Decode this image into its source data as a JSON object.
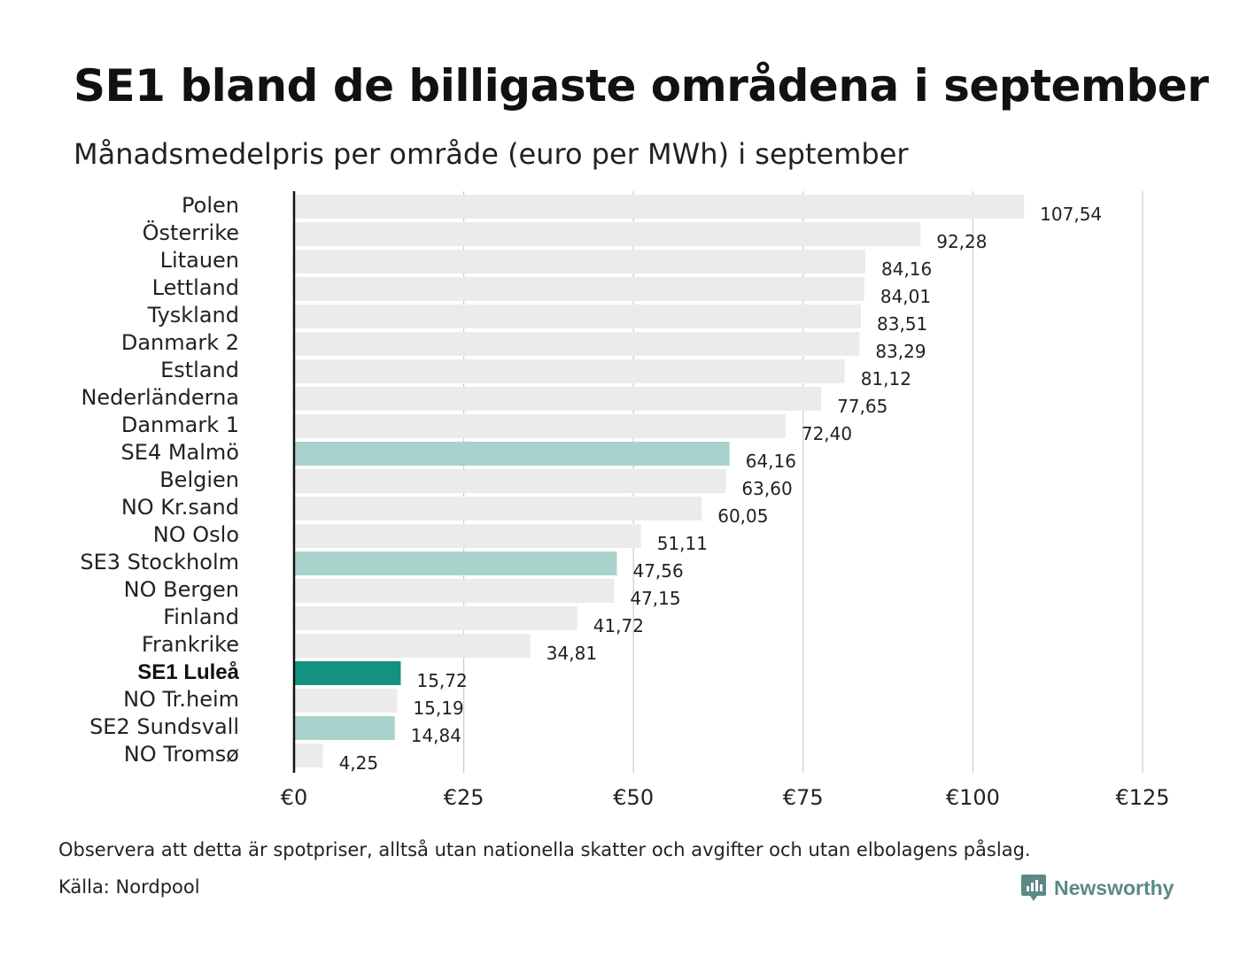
{
  "header": {
    "title": "SE1 bland de billigaste områdena i september",
    "subtitle": "Månadsmedelpris per område (euro per MWh) i september"
  },
  "footer": {
    "note": "Observera att detta är spotpriser, alltså utan nationella skatter och avgifter och utan elbolagens påslag.",
    "source": "Källa: Nordpool",
    "brand": "Newsworthy"
  },
  "colors": {
    "default_bar": "#ebebeb",
    "highlight_bar": "#a7d3cc",
    "primary_bar": "#13927f",
    "gridline": "#cccccc",
    "axis": "#111111",
    "brand": "#5b8a86"
  },
  "chart_data": {
    "type": "bar",
    "orientation": "horizontal",
    "title": "SE1 bland de billigaste områdena i september",
    "subtitle": "Månadsmedelpris per område (euro per MWh) i september",
    "xlabel": "",
    "ylabel": "",
    "xlim": [
      0,
      125
    ],
    "grid": true,
    "ticks": [
      {
        "value": 0,
        "label": "€0"
      },
      {
        "value": 25,
        "label": "€25"
      },
      {
        "value": 50,
        "label": "€50"
      },
      {
        "value": 75,
        "label": "€75"
      },
      {
        "value": 100,
        "label": "€100"
      },
      {
        "value": 125,
        "label": "€125"
      }
    ],
    "series": [
      {
        "name": "Månadsmedelpris (euro per MWh)",
        "points": [
          {
            "category": "Polen",
            "value": 107.54,
            "label": "107,54",
            "style": "default"
          },
          {
            "category": "Österrike",
            "value": 92.28,
            "label": "92,28",
            "style": "default"
          },
          {
            "category": "Litauen",
            "value": 84.16,
            "label": "84,16",
            "style": "default"
          },
          {
            "category": "Lettland",
            "value": 84.01,
            "label": "84,01",
            "style": "default"
          },
          {
            "category": "Tyskland",
            "value": 83.51,
            "label": "83,51",
            "style": "default"
          },
          {
            "category": "Danmark 2",
            "value": 83.29,
            "label": "83,29",
            "style": "default"
          },
          {
            "category": "Estland",
            "value": 81.12,
            "label": "81,12",
            "style": "default"
          },
          {
            "category": "Nederländerna",
            "value": 77.65,
            "label": "77,65",
            "style": "default"
          },
          {
            "category": "Danmark 1",
            "value": 72.4,
            "label": "72,40",
            "style": "default"
          },
          {
            "category": "SE4 Malmö",
            "value": 64.16,
            "label": "64,16",
            "style": "highlight"
          },
          {
            "category": "Belgien",
            "value": 63.6,
            "label": "63,60",
            "style": "default"
          },
          {
            "category": "NO Kr.sand",
            "value": 60.05,
            "label": "60,05",
            "style": "default"
          },
          {
            "category": "NO Oslo",
            "value": 51.11,
            "label": "51,11",
            "style": "default"
          },
          {
            "category": "SE3 Stockholm",
            "value": 47.56,
            "label": "47,56",
            "style": "highlight"
          },
          {
            "category": "NO Bergen",
            "value": 47.15,
            "label": "47,15",
            "style": "default"
          },
          {
            "category": "Finland",
            "value": 41.72,
            "label": "41,72",
            "style": "default"
          },
          {
            "category": "Frankrike",
            "value": 34.81,
            "label": "34,81",
            "style": "default"
          },
          {
            "category": "SE1 Luleå",
            "value": 15.72,
            "label": "15,72",
            "style": "primary"
          },
          {
            "category": "NO Tr.heim",
            "value": 15.19,
            "label": "15,19",
            "style": "default"
          },
          {
            "category": "SE2 Sundsvall",
            "value": 14.84,
            "label": "14,84",
            "style": "highlight"
          },
          {
            "category": "NO Tromsø",
            "value": 4.25,
            "label": "4,25",
            "style": "default"
          }
        ]
      }
    ]
  }
}
